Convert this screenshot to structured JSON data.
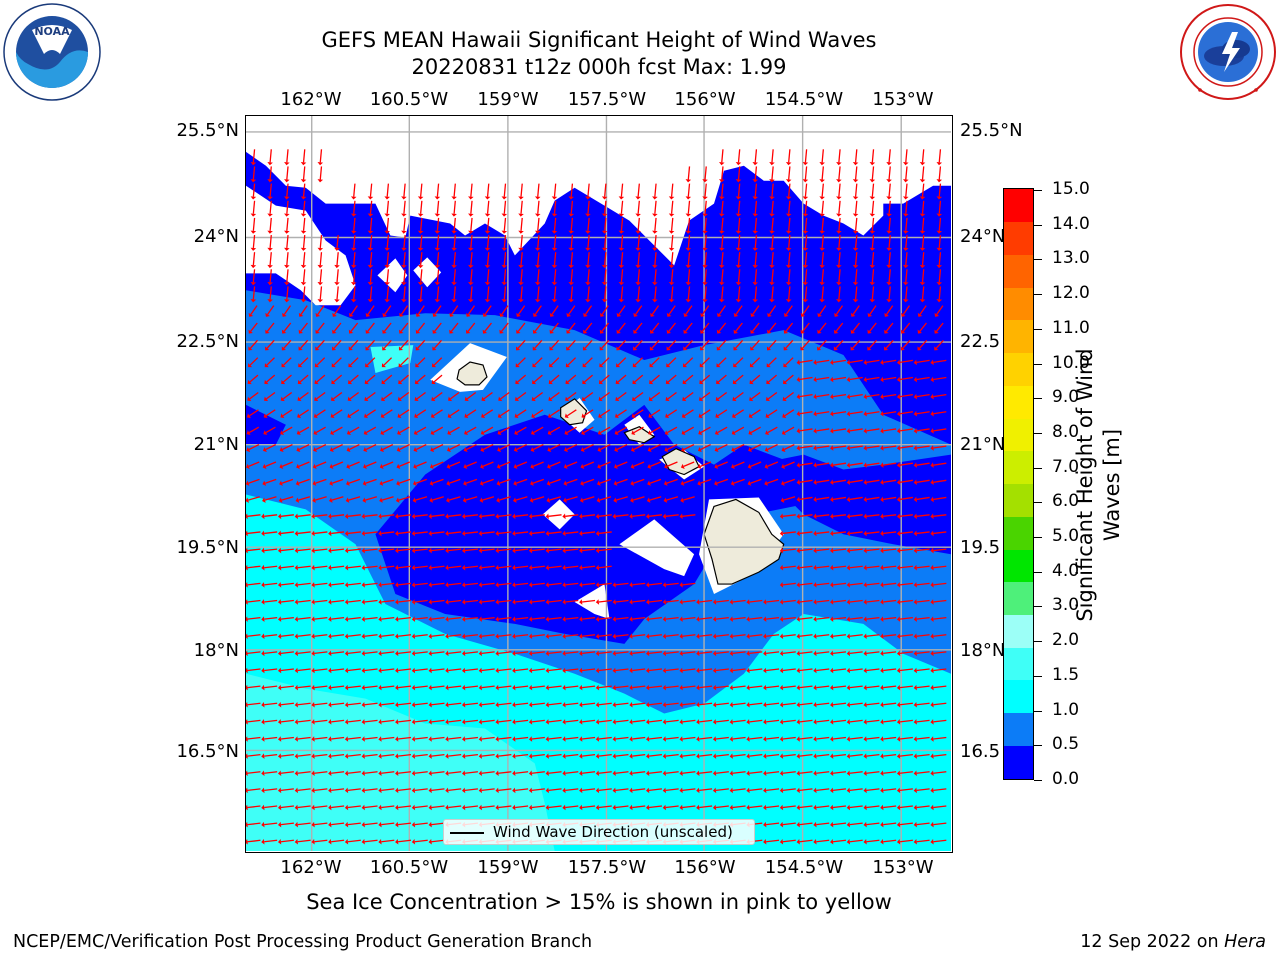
{
  "title": {
    "line1": "GEFS MEAN Hawaii Significant Height of Wind Waves",
    "line2": "20220831 t12z 000h fcst   Max: 1.99"
  },
  "logos": {
    "noaa_text": "NOAA",
    "noaa_ring_text": "NATIONAL OCEANIC AND ATMOSPHERIC ADMINISTRATION",
    "noaa_ring_bottom": "U.S. DEPARTMENT OF COMMERCE",
    "nws_ring_text": "NATIONAL WEATHER SERVICE"
  },
  "map": {
    "lon_labels": [
      "162°W",
      "160.5°W",
      "159°W",
      "157.5°W",
      "156°W",
      "154.5°W",
      "153°W"
    ],
    "lat_labels": [
      "25.5°N",
      "24°N",
      "22.5°N",
      "21°N",
      "19.5°N",
      "18°N",
      "16.5°N"
    ],
    "lat_labels_right": [
      "25.5°N",
      "24°N",
      "22.5",
      "21°N",
      "19.5",
      "18°N",
      "16.5"
    ],
    "legend_label": "Wind Wave Direction (unscaled)",
    "land_color": "#eeebdb",
    "arrow_color": "#ff0000"
  },
  "colorbar": {
    "label": "Significant Height of Wind Waves [m]",
    "ticks": [
      "15.0",
      "14.0",
      "13.0",
      "12.0",
      "11.0",
      "10.0",
      "9.0",
      "8.0",
      "7.0",
      "6.0",
      "5.0",
      "4.0",
      "3.0",
      "2.0",
      "1.5",
      "1.0",
      "0.5",
      "0.0"
    ],
    "colors_bottom_to_top": [
      "#0000ff",
      "#0c7cf7",
      "#00ffff",
      "#3ffff7",
      "#9cfff7",
      "#4ef07a",
      "#00e600",
      "#4ad400",
      "#a4e000",
      "#ccee00",
      "#f0f000",
      "#ffea00",
      "#ffd200",
      "#ffb400",
      "#ff8c00",
      "#ff6400",
      "#ff3c00",
      "#ff0000"
    ]
  },
  "subtitle": "Sea Ice Concentration > 15% is shown in pink to yellow",
  "footer": {
    "left": "NCEP/EMC/Verification Post Processing Product Generation Branch",
    "right_prefix": "12 Sep 2022 on ",
    "right_machine": "Hera"
  }
}
